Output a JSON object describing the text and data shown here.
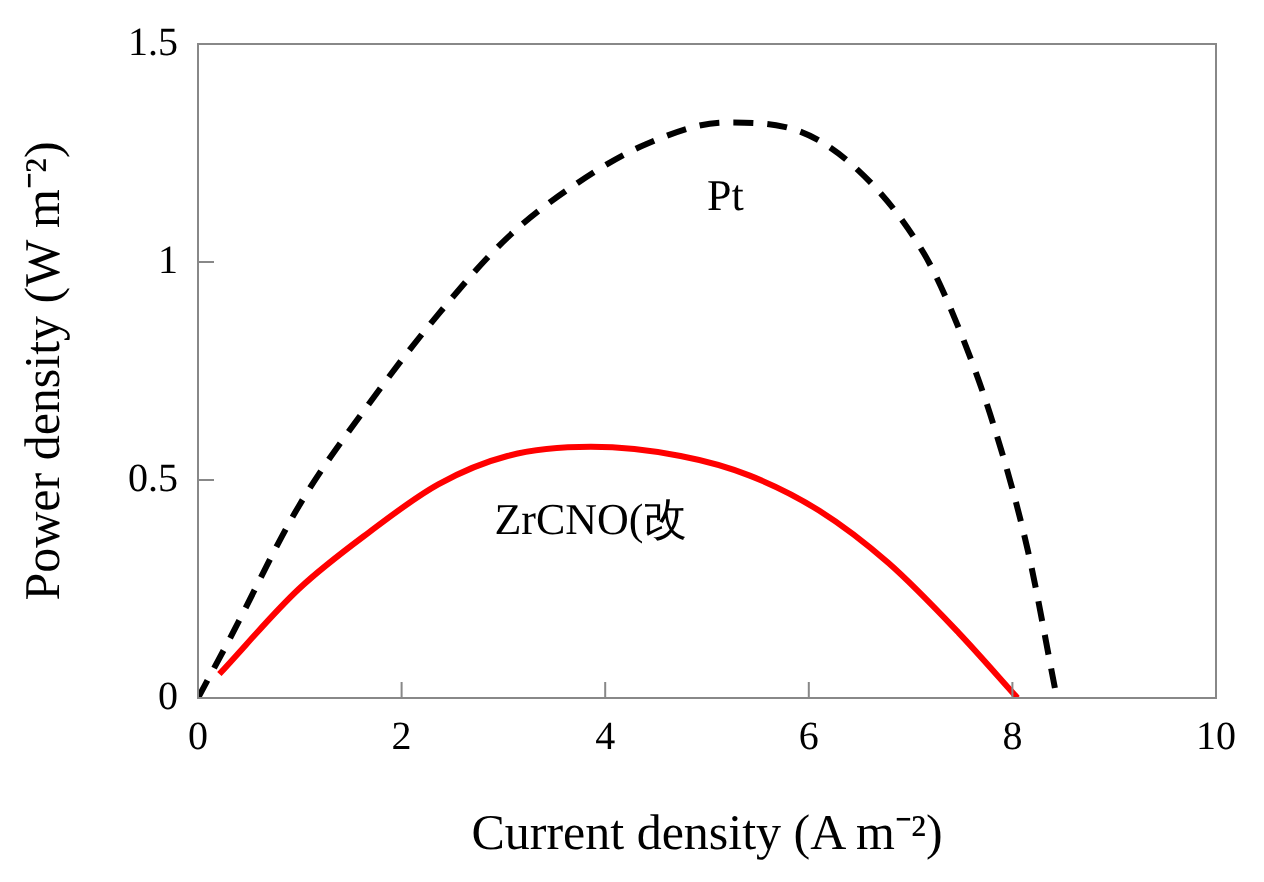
{
  "chart_data": {
    "type": "line",
    "xlabel": "Current density (A m⁻²)",
    "ylabel": "Power density (W m⁻²)",
    "xlim": [
      0,
      10
    ],
    "xticks": [
      0,
      2,
      4,
      6,
      8,
      10
    ],
    "ylim": [
      0,
      1.5
    ],
    "yticks": [
      0,
      0.5,
      1,
      1.5
    ],
    "grid": false,
    "legend": false,
    "marker": "none",
    "series": [
      {
        "name": "Pt",
        "color": "#000000",
        "line_style": "dashed",
        "x": [
          0,
          0.31,
          0.99,
          1.68,
          2.36,
          3.04,
          3.72,
          4.4,
          5.18,
          5.76,
          6.44,
          7.13,
          7.47,
          7.81,
          8.15,
          8.42
        ],
        "values": [
          0,
          0.135,
          0.44,
          0.675,
          0.88,
          1.056,
          1.18,
          1.27,
          1.32,
          1.31,
          1.22,
          1.02,
          0.85,
          0.63,
          0.34,
          0.02
        ]
      },
      {
        "name": "ZrCNO(改",
        "color": "#ff0000",
        "line_style": "solid",
        "x": [
          0.21,
          0.99,
          1.68,
          2.36,
          3.04,
          3.86,
          4.74,
          5.42,
          6.1,
          6.78,
          7.47,
          8.05
        ],
        "values": [
          0.055,
          0.25,
          0.38,
          0.49,
          0.555,
          0.576,
          0.555,
          0.51,
          0.43,
          0.31,
          0.15,
          0
        ]
      }
    ]
  }
}
